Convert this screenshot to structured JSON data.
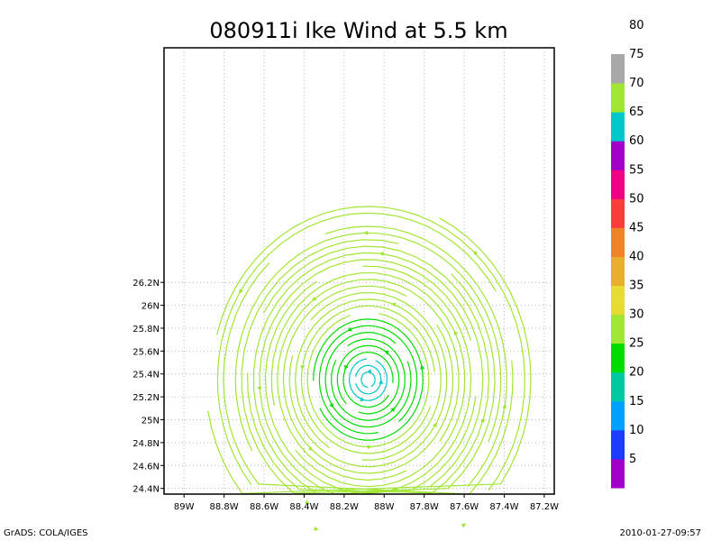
{
  "chart_data": {
    "type": "streamline",
    "title": "080911i Ike Wind at 5.5 km",
    "xlabel": "",
    "ylabel": "",
    "xlim": [
      -89.1,
      -87.15
    ],
    "ylim": [
      24.35,
      28.25
    ],
    "x_ticks": [
      {
        "value": -89.0,
        "label": "89W"
      },
      {
        "value": -88.8,
        "label": "88.8W"
      },
      {
        "value": -88.6,
        "label": "88.6W"
      },
      {
        "value": -88.4,
        "label": "88.4W"
      },
      {
        "value": -88.2,
        "label": "88.2W"
      },
      {
        "value": -88.0,
        "label": "88W"
      },
      {
        "value": -87.8,
        "label": "87.8W"
      },
      {
        "value": -87.6,
        "label": "87.6W"
      },
      {
        "value": -87.4,
        "label": "87.4W"
      },
      {
        "value": -87.2,
        "label": "87.2W"
      }
    ],
    "y_ticks": [
      {
        "value": 24.4,
        "label": "24.4N"
      },
      {
        "value": 24.6,
        "label": "24.6N"
      },
      {
        "value": 24.8,
        "label": "24.8N"
      },
      {
        "value": 25.0,
        "label": "25N"
      },
      {
        "value": 25.2,
        "label": "25.2N"
      },
      {
        "value": 25.4,
        "label": "25.4N"
      },
      {
        "value": 25.6,
        "label": "25.6N"
      },
      {
        "value": 25.8,
        "label": "25.8N"
      },
      {
        "value": 26.0,
        "label": "26N"
      },
      {
        "value": 26.2,
        "label": "26.2N"
      }
    ],
    "grid": true,
    "circulation_center": {
      "lon": -88.08,
      "lat": 25.35
    },
    "rotation": "counterclockwise",
    "colorbar": {
      "colors": [
        "#a000c8",
        "#1e3cff",
        "#00a0ff",
        "#00c8a0",
        "#00dc00",
        "#a0e632",
        "#e6dc32",
        "#e6af2d",
        "#f08228",
        "#fa3c3c",
        "#f00082",
        "#a000c8",
        "#00c8c8",
        "#a0e632",
        "#a8a8a8"
      ],
      "labels": [
        "5",
        "10",
        "15",
        "20",
        "25",
        "30",
        "35",
        "40",
        "45",
        "50",
        "55",
        "60",
        "65",
        "70",
        "75",
        "80"
      ]
    },
    "wind_speed_zones": [
      {
        "min_lon_offset": 0.0,
        "max_lon_offset": 0.12,
        "speed_color": "#00c8c8"
      },
      {
        "min_lon_offset": 0.12,
        "max_lon_offset": 0.3,
        "speed_color": "#00dc00"
      },
      {
        "min_lon_offset": 0.3,
        "max_lon_offset": 0.55,
        "speed_color": "#a0e632"
      }
    ]
  },
  "footer": {
    "left": "GrADS: COLA/IGES",
    "right": "2010-01-27-09:57"
  }
}
